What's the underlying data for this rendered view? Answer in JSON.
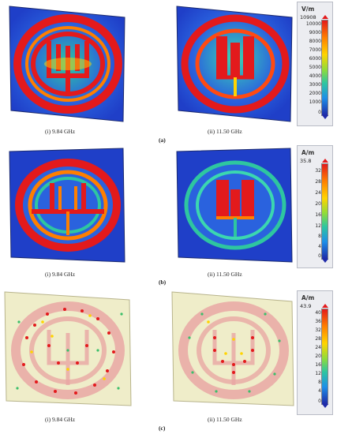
{
  "rows": [
    {
      "label": "(a)",
      "unit": "V/m",
      "max_value": "10908",
      "ticks": [
        "10000",
        "9000",
        "8000",
        "7000",
        "6000",
        "5000",
        "4000",
        "3000",
        "2000",
        "1000",
        "0"
      ],
      "left_caption": "(i) 9.84 GHz",
      "right_caption": "(ii) 11.50 GHz"
    },
    {
      "label": "(b)",
      "unit": "A/m",
      "max_value": "35.8",
      "ticks": [
        "32",
        "28",
        "24",
        "20",
        "16",
        "12",
        "8",
        "4",
        "0"
      ],
      "left_caption": "(i) 9.84 GHz",
      "right_caption": "(ii) 11.50 GHz"
    },
    {
      "label": "(c)",
      "unit": "A/m",
      "max_value": "43.9",
      "ticks": [
        "40",
        "36",
        "32",
        "28",
        "24",
        "20",
        "16",
        "12",
        "8",
        "4",
        "0"
      ],
      "left_caption": "(i) 9.84 GHz",
      "right_caption": "(ii) 11.50 GHz"
    }
  ],
  "colors": {
    "field_low": "#1f3fc8",
    "field_mid": "#2ec6a0",
    "field_high": "#e31a1c",
    "substrate_c": "#efedc9"
  }
}
